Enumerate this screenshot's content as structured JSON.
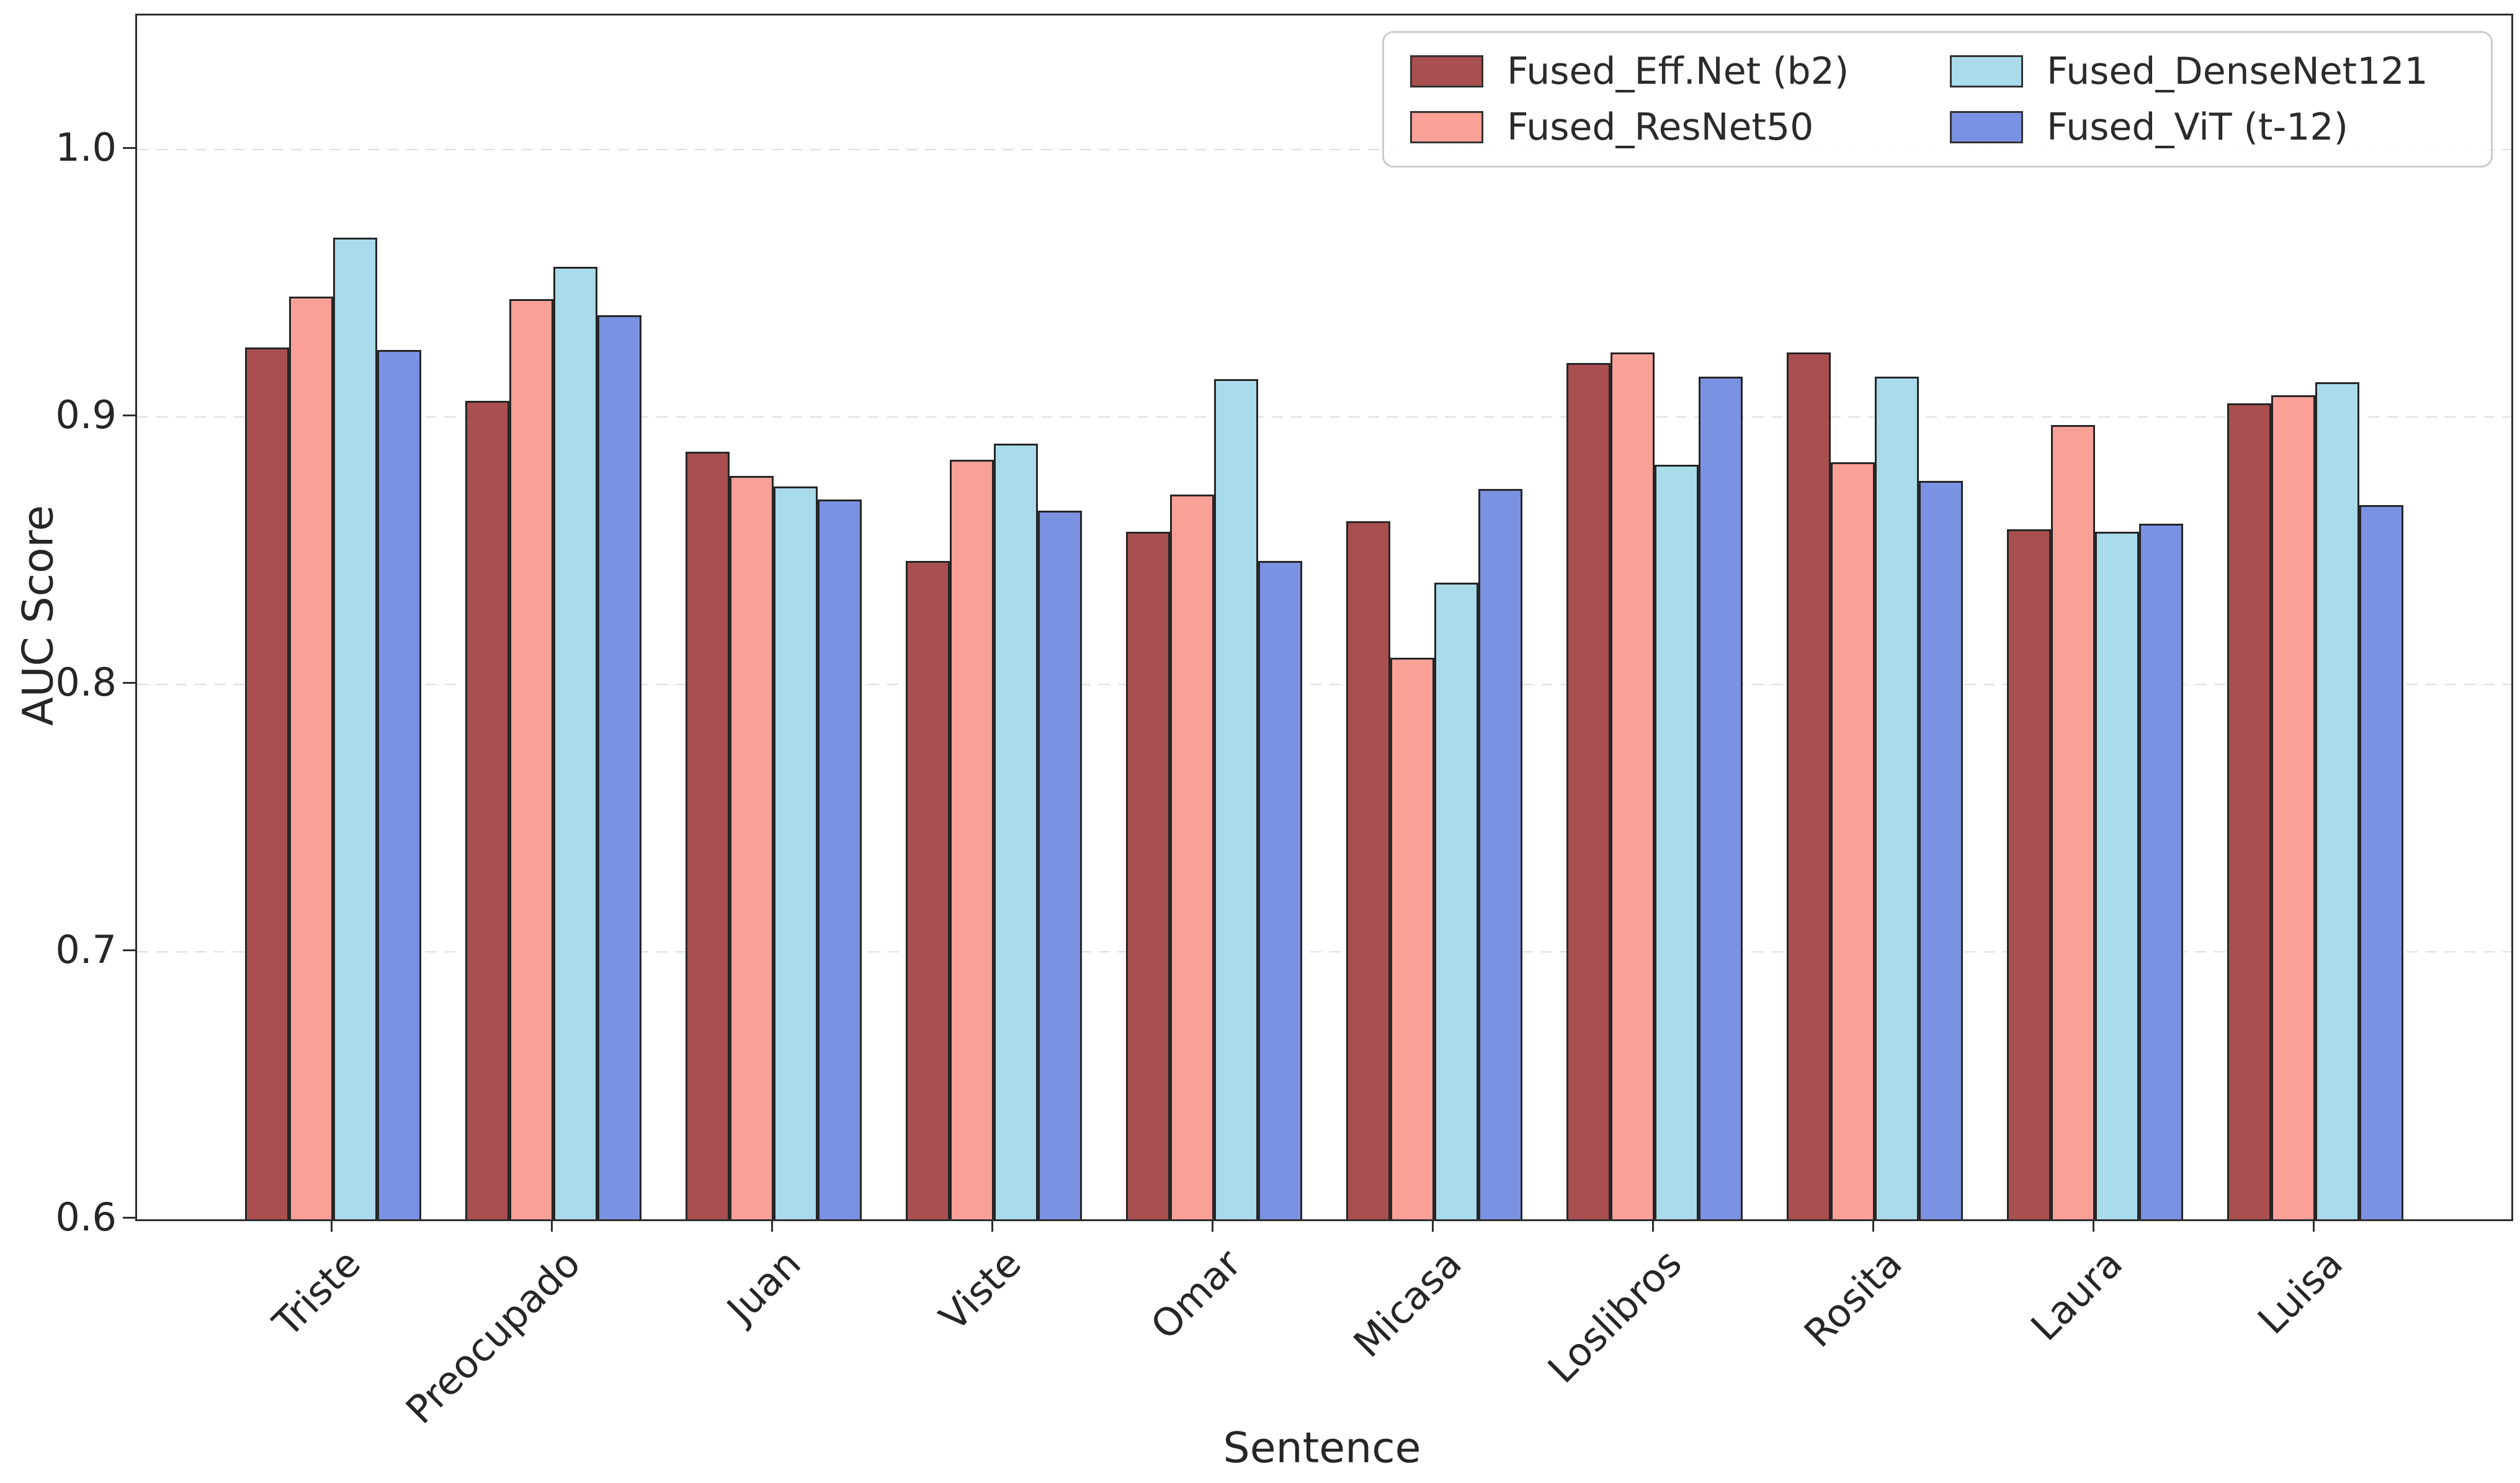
{
  "chart_data": {
    "type": "bar",
    "title": "",
    "xlabel": "Sentence",
    "ylabel": "AUC Score",
    "categories": [
      "Triste",
      "Preocupado",
      "Juan",
      "Viste",
      "Omar",
      "Micasa",
      "Loslibros",
      "Rosita",
      "Laura",
      "Luisa"
    ],
    "series": [
      {
        "name": "Fused_Eff.Net (b2)",
        "color": "#a94f4f",
        "values": [
          0.926,
          0.906,
          0.887,
          0.846,
          0.857,
          0.861,
          0.92,
          0.924,
          0.858,
          0.905
        ]
      },
      {
        "name": "Fused_ResNet50",
        "color": "#f9a097",
        "values": [
          0.945,
          0.944,
          0.878,
          0.884,
          0.871,
          0.81,
          0.924,
          0.883,
          0.897,
          0.908
        ]
      },
      {
        "name": "Fused_DenseNet121",
        "color": "#a9dbea",
        "values": [
          0.967,
          0.956,
          0.874,
          0.89,
          0.914,
          0.838,
          0.882,
          0.915,
          0.857,
          0.913
        ]
      },
      {
        "name": "Fused_ViT (t-12)",
        "color": "#7b91e2",
        "values": [
          0.925,
          0.938,
          0.869,
          0.865,
          0.846,
          0.873,
          0.915,
          0.876,
          0.86,
          0.867
        ]
      }
    ],
    "ylim": [
      0.6,
      1.05
    ],
    "y_ticks": [
      "0.6",
      "0.7",
      "0.8",
      "0.9",
      "1.0"
    ],
    "grid": "horizontal dashed at tick values",
    "grid_color": "#dedede",
    "legend_position": "upper right",
    "legend_columns": 2,
    "bar_edge_color": "#262626",
    "axis_color": "#2e2e2e"
  }
}
